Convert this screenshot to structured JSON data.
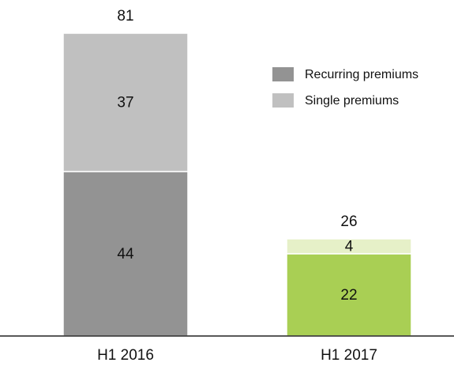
{
  "chart_data": {
    "type": "stacked_bar",
    "categories": [
      "H1 2016",
      "H1 2017"
    ],
    "series": [
      {
        "name": "Recurring premiums",
        "color": "#939393",
        "point_colors": [
          "#939393",
          "#a9cf54"
        ],
        "values": [
          44,
          22
        ]
      },
      {
        "name": "Single premiums",
        "color": "#c0c0c0",
        "point_colors": [
          "#c0c0c0",
          "#e6f0c8"
        ],
        "values": [
          37,
          4
        ]
      }
    ],
    "totals": [
      81,
      26
    ],
    "legend": "upper right"
  }
}
